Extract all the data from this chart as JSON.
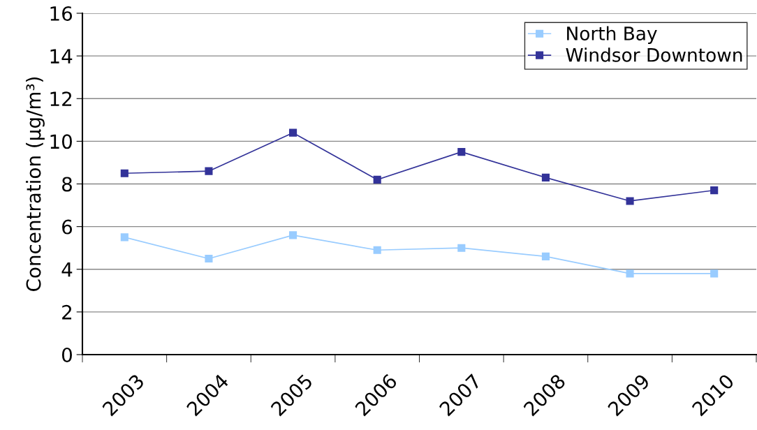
{
  "chart_data": {
    "type": "line",
    "ylabel": "Concentration (µg/m³)",
    "categories": [
      "2003",
      "2004",
      "2005",
      "2006",
      "2007",
      "2008",
      "2009",
      "2010"
    ],
    "series": [
      {
        "name": "North Bay",
        "color": "#99ccff",
        "values": [
          5.5,
          4.5,
          5.6,
          4.9,
          5.0,
          4.6,
          3.8,
          3.8
        ]
      },
      {
        "name": "Windsor Downtown",
        "color": "#333399",
        "values": [
          8.5,
          8.6,
          10.4,
          8.2,
          9.5,
          8.3,
          7.2,
          7.7
        ]
      }
    ],
    "ylim": [
      0,
      16
    ],
    "yticks": [
      0,
      2,
      4,
      6,
      8,
      10,
      12,
      14,
      16
    ],
    "grid": "y",
    "legend": "top right",
    "marker": "square",
    "line_style": "solid"
  }
}
